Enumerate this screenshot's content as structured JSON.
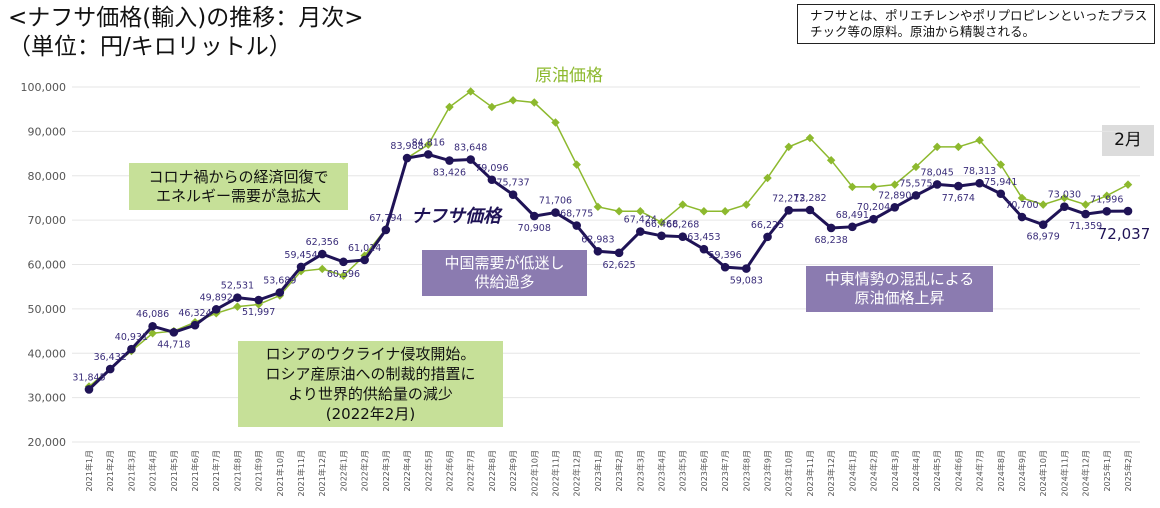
{
  "header": {
    "title": "<ナフサ価格(輸入)の推移：月次>\n（単位：円/キロリットル）",
    "note": "ナフサとは、ポリエチレンやポリプロピレンといったプラスチック等の原料。原油から精製される。",
    "badge": "2月"
  },
  "annotations": {
    "corona": "コロナ禍からの経済回復で\nエネルギー需要が急拡大",
    "ukraine": "ロシアのウクライナ侵攻開始。\nロシア産原油への制裁的措置に\nより世界的供給量の減少\n(2022年2月)",
    "china": "中国需要が低迷し\n供給過多",
    "mideast": "中東情勢の混乱による\n原油価格上昇",
    "last_value": "72,037"
  },
  "colors": {
    "naphtha": "#1f1356",
    "crude": "#8db92e",
    "text_labels": "#3a2d7a",
    "grid": "#e6e6e6"
  },
  "chart_data": {
    "type": "line",
    "x": [
      "2021年1月",
      "2021年2月",
      "2021年3月",
      "2021年4月",
      "2021年5月",
      "2021年6月",
      "2021年7月",
      "2021年8月",
      "2021年9月",
      "2021年10月",
      "2021年11月",
      "2021年12月",
      "2022年1月",
      "2022年2月",
      "2022年3月",
      "2022年4月",
      "2022年5月",
      "2022年6月",
      "2022年7月",
      "2022年8月",
      "2022年9月",
      "2022年10月",
      "2022年11月",
      "2022年12月",
      "2023年1月",
      "2023年2月",
      "2023年3月",
      "2023年4月",
      "2023年5月",
      "2023年6月",
      "2023年7月",
      "2023年8月",
      "2023年9月",
      "2023年10月",
      "2023年11月",
      "2023年12月",
      "2024年1月",
      "2024年2月",
      "2024年3月",
      "2024年4月",
      "2024年5月",
      "2024年6月",
      "2024年7月",
      "2024年8月",
      "2024年9月",
      "2024年10月",
      "2024年11月",
      "2024年12月",
      "2025年1月",
      "2025年2月"
    ],
    "series": [
      {
        "name": "ナフサ価格",
        "values": [
          31845,
          36432,
          40931,
          46086,
          44718,
          46324,
          49892,
          52531,
          51997,
          53689,
          59454,
          62356,
          60596,
          61014,
          67794,
          83988,
          84816,
          83426,
          83648,
          79096,
          75737,
          70908,
          71706,
          68775,
          62983,
          62625,
          67424,
          66468,
          66268,
          63453,
          59396,
          59083,
          66225,
          72213,
          72282,
          68238,
          68491,
          70204,
          72890,
          75575,
          78045,
          77674,
          78313,
          75941,
          70700,
          68979,
          73030,
          71359,
          71996,
          72037
        ],
        "labels": [
          "31,845",
          "36,432",
          "40,931",
          "46,086",
          "44,718",
          "46,324",
          "49,892",
          "52,531",
          "51,997",
          "53,689",
          "59,454",
          "62,356",
          "60,596",
          "61,014",
          "67,794",
          "83,988",
          "84,816",
          "83,426",
          "83,648",
          "79,096",
          "75,737",
          "70,908",
          "71,706",
          "68,775",
          "62,983",
          "62,625",
          "67,424",
          "66,468",
          "66,268",
          "63,453",
          "59,396",
          "59,083",
          "66,225",
          "72,213",
          "72,282",
          "68,238",
          "68,491",
          "70,204",
          "72,890",
          "75,575",
          "78,045",
          "77,674",
          "78,313",
          "75,941",
          "70,700",
          "68,979",
          "73,030",
          "71,359",
          "71,996",
          ""
        ]
      },
      {
        "name": "原油価格",
        "values": [
          32500,
          36500,
          40500,
          44500,
          45000,
          47000,
          49000,
          50500,
          51000,
          53000,
          58500,
          59000,
          57500,
          62000,
          68000,
          84000,
          87000,
          95500,
          99000,
          95500,
          97000,
          96500,
          92000,
          82500,
          73000,
          72000,
          72000,
          69500,
          73500,
          72000,
          72000,
          73500,
          79500,
          86500,
          88500,
          83500,
          77500,
          77500,
          78000,
          82000,
          86500,
          86500,
          88000,
          82500,
          75000,
          73500,
          75000,
          73500,
          75500,
          78000
        ]
      }
    ],
    "ylim": [
      20000,
      100000
    ],
    "yticks": [
      "20,000",
      "30,000",
      "40,000",
      "50,000",
      "60,000",
      "70,000",
      "80,000",
      "90,000",
      "100,000"
    ],
    "grid": true
  }
}
